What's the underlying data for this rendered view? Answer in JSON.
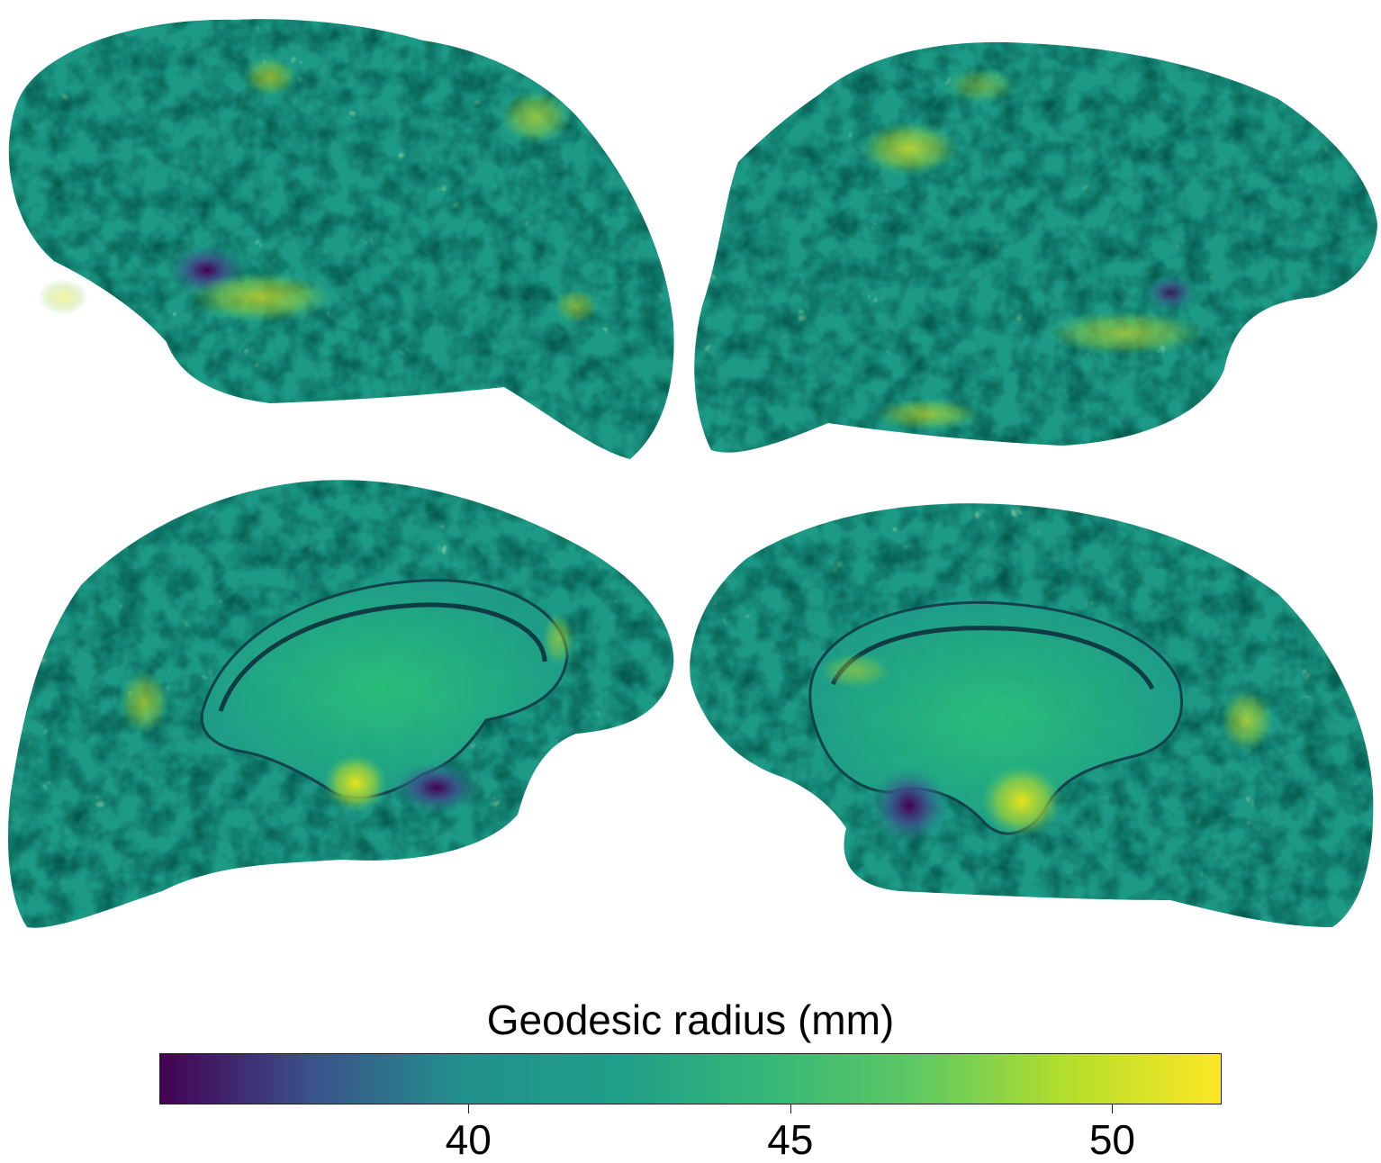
{
  "figure": {
    "panels": [
      {
        "name": "lateral-left"
      },
      {
        "name": "lateral-right"
      },
      {
        "name": "medial-left"
      },
      {
        "name": "medial-right"
      }
    ]
  },
  "colorbar": {
    "title": "Geodesic radius (mm)",
    "min": 35.2,
    "max": 51.7,
    "ticks": [
      {
        "value": 40,
        "label": "40"
      },
      {
        "value": 45,
        "label": "45"
      },
      {
        "value": 50,
        "label": "50"
      }
    ],
    "colormap": [
      "#440154",
      "#3b528b",
      "#21918c",
      "#1f9e89",
      "#35b779",
      "#5ec962",
      "#b5de2b",
      "#fde725"
    ]
  }
}
